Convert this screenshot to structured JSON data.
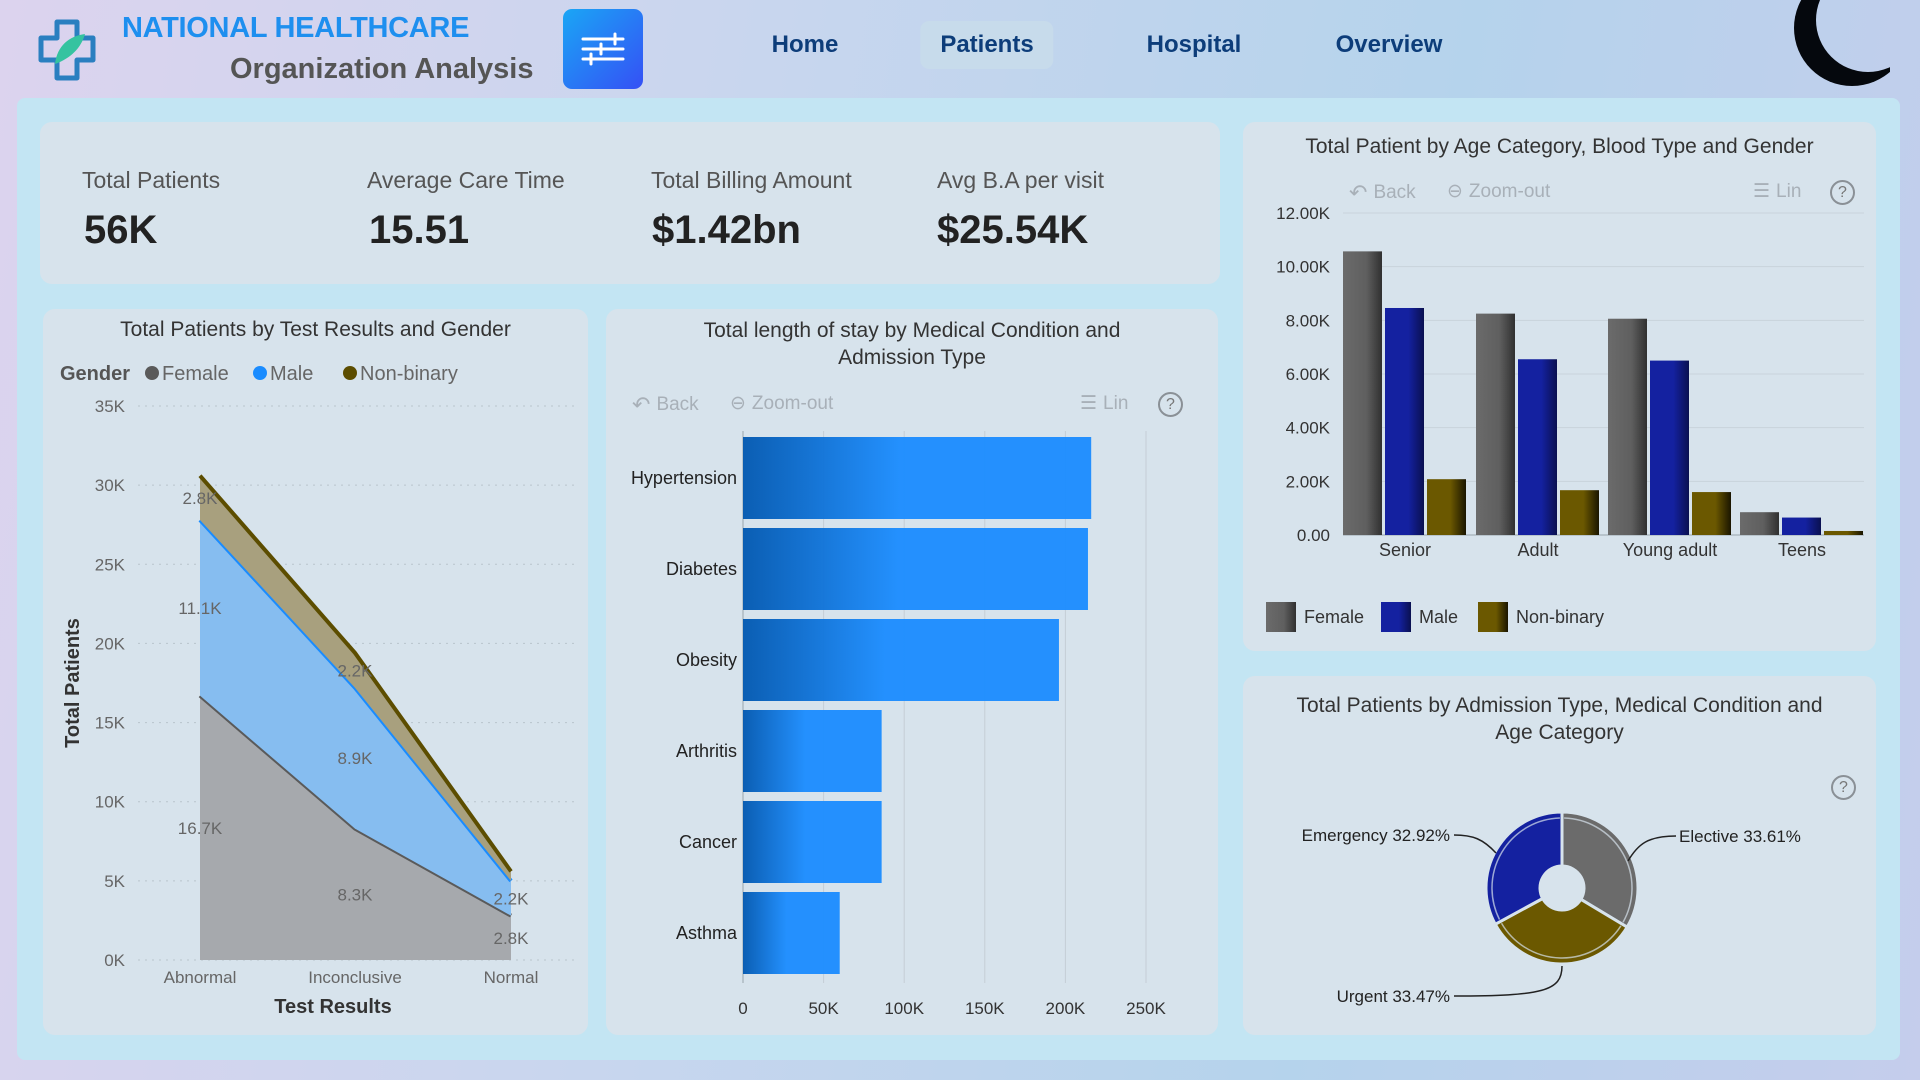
{
  "header": {
    "title": "NATIONAL HEALTHCARE",
    "subtitle": "Organization Analysis",
    "nav": [
      {
        "label": "Home"
      },
      {
        "label": "Patients",
        "active": true
      },
      {
        "label": "Hospital"
      },
      {
        "label": "Overview"
      }
    ],
    "icons": {
      "logo": "medical-cross-leaf-logo",
      "filter": "sliders-icon",
      "theme": "moon-icon"
    }
  },
  "kpis": [
    {
      "label": "Total Patients",
      "value": "56K"
    },
    {
      "label": "Average Care Time",
      "value": "15.51"
    },
    {
      "label": "Total Billing Amount",
      "value": "$1.42bn"
    },
    {
      "label": "Avg B.A per visit",
      "value": "$25.54K"
    }
  ],
  "toolbar": {
    "back": "Back",
    "zoom_out": "Zoom-out",
    "lin": "Lin",
    "help": "?"
  },
  "colors": {
    "female": "#5a5a5a",
    "male_area": "#1a8cff",
    "male_bar": "#1421a0",
    "nonbinary": "#6b5800",
    "bar_blue": "#1a8cff"
  },
  "chart_data": [
    {
      "type": "area",
      "stacked": true,
      "title": "Total Patients by Test Results and Gender",
      "legend_title": "Gender",
      "legend_position": "top-left",
      "categories": [
        "Abnormal",
        "Inconclusive",
        "Normal"
      ],
      "xlabel": "Test Results",
      "ylabel": "Total Patients",
      "yticks": [
        "0K",
        "5K",
        "10K",
        "15K",
        "20K",
        "25K",
        "30K",
        "35K"
      ],
      "ylim": [
        0,
        35000
      ],
      "grid": true,
      "series": [
        {
          "name": "Female",
          "values": [
            16700,
            8300,
            2800
          ],
          "labels": [
            "16.7K",
            "8.3K",
            "2.8K"
          ]
        },
        {
          "name": "Male",
          "values": [
            11100,
            8900,
            2200
          ],
          "labels": [
            "11.1K",
            "8.9K",
            "2.2K"
          ]
        },
        {
          "name": "Non-binary",
          "values": [
            2800,
            2200,
            600
          ],
          "labels": [
            "2.8K",
            "2.2K",
            null
          ]
        }
      ]
    },
    {
      "type": "bar",
      "orientation": "horizontal",
      "title": "Total length of stay by Medical Condition and Admission Type",
      "categories": [
        "Hypertension",
        "Diabetes",
        "Obesity",
        "Arthritis",
        "Cancer",
        "Asthma"
      ],
      "values": [
        216000,
        214000,
        196000,
        86000,
        86000,
        60000
      ],
      "xticks": [
        "0",
        "50K",
        "100K",
        "150K",
        "200K",
        "250K"
      ],
      "xlim": [
        0,
        250000
      ],
      "grid": true
    },
    {
      "type": "bar",
      "title": "Total Patient by Age Category, Blood Type and Gender",
      "legend_position": "bottom-left",
      "categories": [
        "Senior",
        "Adult",
        "Young adult",
        "Teens"
      ],
      "yticks": [
        "0.00",
        "2.00K",
        "4.00K",
        "6.00K",
        "8.00K",
        "10.00K",
        "12.00K"
      ],
      "ylim": [
        0,
        12000
      ],
      "grid": true,
      "series": [
        {
          "name": "Female",
          "values": [
            10570,
            8250,
            8060,
            850
          ]
        },
        {
          "name": "Male",
          "values": [
            8460,
            6550,
            6500,
            650
          ]
        },
        {
          "name": "Non-binary",
          "values": [
            2080,
            1670,
            1600,
            150
          ]
        }
      ]
    },
    {
      "type": "pie",
      "donut": true,
      "title": "Total Patients by Admission Type, Medical Condition and Age Category",
      "slices": [
        {
          "name": "Elective",
          "value": 33.61,
          "label": "Elective 33.61%"
        },
        {
          "name": "Urgent",
          "value": 33.47,
          "label": "Urgent 33.47%"
        },
        {
          "name": "Emergency",
          "value": 32.92,
          "label": "Emergency 32.92%"
        }
      ]
    }
  ]
}
